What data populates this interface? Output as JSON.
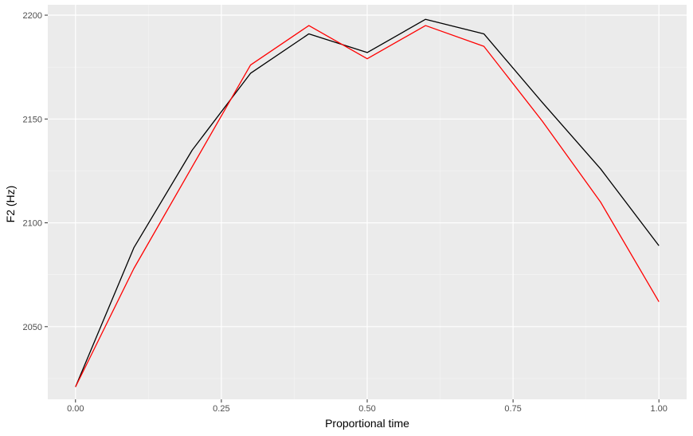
{
  "chart_data": {
    "type": "line",
    "title": "",
    "xlabel": "Proportional time",
    "ylabel": "F2 (Hz)",
    "xlim": [
      -0.0475,
      1.0475
    ],
    "ylim": [
      2015,
      2205
    ],
    "x_ticks": [
      0.0,
      0.25,
      0.5,
      0.75,
      1.0
    ],
    "x_tick_labels": [
      "0.00",
      "0.25",
      "0.50",
      "0.75",
      "1.00"
    ],
    "y_ticks": [
      2050,
      2100,
      2150,
      2200
    ],
    "y_tick_labels": [
      "2050",
      "2100",
      "2150",
      "2200"
    ],
    "grid": true,
    "legend": "none",
    "x": [
      0.0,
      0.1,
      0.2,
      0.3,
      0.4,
      0.5,
      0.6,
      0.7,
      0.8,
      0.9,
      1.0
    ],
    "series": [
      {
        "color": "#000000",
        "values": [
          2021,
          2088,
          2135,
          2172,
          2191,
          2182,
          2198,
          2191,
          2158,
          2126,
          2089
        ]
      },
      {
        "color": "#ff0000",
        "values": [
          2021,
          2078,
          2127,
          2176,
          2195,
          2179,
          2195,
          2185,
          2149,
          2110,
          2062
        ]
      }
    ],
    "colors": {
      "panel": "#ebebeb",
      "grid_major": "#ffffff",
      "grid_minor": "#f5f5f5"
    }
  }
}
